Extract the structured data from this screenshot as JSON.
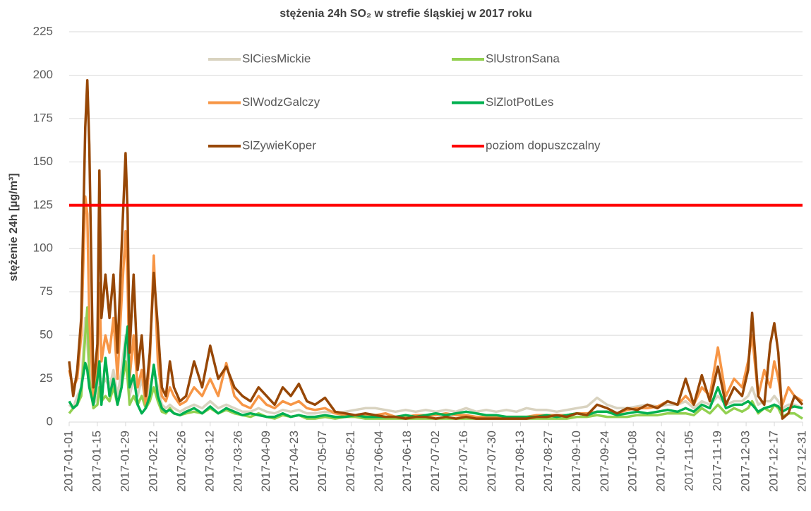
{
  "chart_data": {
    "type": "line",
    "title": "stężenia 24h SO₂ w strefie śląskiej w 2017 roku",
    "y_label": "stężenie 24h [µg/m³]",
    "x": [
      "2017-01-01",
      "2017-01-03",
      "2017-01-05",
      "2017-01-07",
      "2017-01-09",
      "2017-01-10",
      "2017-01-11",
      "2017-01-13",
      "2017-01-15",
      "2017-01-16",
      "2017-01-17",
      "2017-01-19",
      "2017-01-21",
      "2017-01-23",
      "2017-01-25",
      "2017-01-27",
      "2017-01-29",
      "2017-01-30",
      "2017-01-31",
      "2017-02-02",
      "2017-02-04",
      "2017-02-06",
      "2017-02-08",
      "2017-02-10",
      "2017-02-12",
      "2017-02-14",
      "2017-02-16",
      "2017-02-18",
      "2017-02-20",
      "2017-02-22",
      "2017-02-25",
      "2017-02-28",
      "2017-03-04",
      "2017-03-08",
      "2017-03-12",
      "2017-03-16",
      "2017-03-20",
      "2017-03-24",
      "2017-03-28",
      "2017-04-01",
      "2017-04-05",
      "2017-04-09",
      "2017-04-13",
      "2017-04-17",
      "2017-04-21",
      "2017-04-25",
      "2017-04-29",
      "2017-05-03",
      "2017-05-08",
      "2017-05-13",
      "2017-05-18",
      "2017-05-23",
      "2017-05-28",
      "2017-06-02",
      "2017-06-07",
      "2017-06-12",
      "2017-06-17",
      "2017-06-22",
      "2017-06-27",
      "2017-07-02",
      "2017-07-07",
      "2017-07-12",
      "2017-07-17",
      "2017-07-22",
      "2017-07-27",
      "2017-08-01",
      "2017-08-06",
      "2017-08-11",
      "2017-08-16",
      "2017-08-21",
      "2017-08-26",
      "2017-08-31",
      "2017-09-05",
      "2017-09-10",
      "2017-09-15",
      "2017-09-20",
      "2017-09-25",
      "2017-09-30",
      "2017-10-05",
      "2017-10-10",
      "2017-10-15",
      "2017-10-20",
      "2017-10-25",
      "2017-10-30",
      "2017-11-03",
      "2017-11-07",
      "2017-11-11",
      "2017-11-15",
      "2017-11-19",
      "2017-11-23",
      "2017-11-27",
      "2017-12-01",
      "2017-12-04",
      "2017-12-06",
      "2017-12-09",
      "2017-12-12",
      "2017-12-15",
      "2017-12-17",
      "2017-12-19",
      "2017-12-21",
      "2017-12-24",
      "2017-12-27",
      "2017-12-31"
    ],
    "series": [
      {
        "name": "SlCiesMickie",
        "color": "#d9d3c0",
        "values": [
          10,
          8,
          15,
          20,
          60,
          45,
          30,
          10,
          15,
          30,
          20,
          25,
          20,
          30,
          15,
          30,
          50,
          35,
          15,
          25,
          15,
          25,
          10,
          20,
          30,
          20,
          10,
          8,
          10,
          8,
          6,
          8,
          10,
          8,
          12,
          8,
          10,
          8,
          6,
          6,
          8,
          6,
          5,
          7,
          6,
          7,
          5,
          5,
          6,
          5,
          6,
          7,
          8,
          8,
          7,
          6,
          7,
          6,
          7,
          6,
          7,
          6,
          8,
          6,
          7,
          6,
          7,
          6,
          8,
          7,
          7,
          6,
          7,
          8,
          9,
          14,
          10,
          8,
          8,
          9,
          10,
          9,
          10,
          10,
          12,
          8,
          12,
          10,
          15,
          10,
          12,
          12,
          15,
          20,
          10,
          12,
          12,
          15,
          12,
          8,
          10,
          10,
          8
        ]
      },
      {
        "name": "SlUstronSana",
        "color": "#92d050",
        "values": [
          5,
          8,
          10,
          15,
          50,
          66,
          25,
          8,
          10,
          20,
          12,
          15,
          12,
          20,
          10,
          20,
          35,
          25,
          10,
          15,
          10,
          15,
          8,
          12,
          20,
          12,
          6,
          5,
          8,
          5,
          4,
          5,
          6,
          5,
          8,
          5,
          7,
          5,
          4,
          3,
          5,
          3,
          2,
          4,
          3,
          4,
          2,
          2,
          3,
          2,
          3,
          3,
          2,
          2,
          2,
          2,
          2,
          2,
          2,
          2,
          2,
          2,
          2,
          2,
          2,
          2,
          2,
          2,
          2,
          2,
          2,
          2,
          2,
          3,
          3,
          4,
          3,
          3,
          3,
          4,
          4,
          4,
          5,
          5,
          5,
          4,
          8,
          5,
          10,
          5,
          8,
          6,
          8,
          12,
          5,
          8,
          6,
          10,
          8,
          3,
          5,
          5,
          2
        ]
      },
      {
        "name": "SlWodzGalczy",
        "color": "#f79646",
        "values": [
          30,
          20,
          25,
          50,
          130,
          120,
          60,
          15,
          30,
          80,
          35,
          50,
          40,
          60,
          25,
          70,
          110,
          80,
          25,
          50,
          20,
          30,
          10,
          35,
          96,
          35,
          15,
          12,
          20,
          15,
          10,
          12,
          20,
          15,
          25,
          15,
          34,
          15,
          10,
          8,
          15,
          10,
          8,
          12,
          10,
          12,
          8,
          7,
          8,
          5,
          4,
          4,
          4,
          4,
          5,
          3,
          3,
          4,
          4,
          4,
          5,
          4,
          4,
          3,
          3,
          3,
          3,
          3,
          3,
          4,
          4,
          4,
          4,
          5,
          5,
          6,
          6,
          5,
          7,
          8,
          8,
          9,
          12,
          10,
          15,
          10,
          20,
          15,
          43,
          15,
          25,
          20,
          35,
          50,
          15,
          30,
          20,
          35,
          25,
          10,
          20,
          15,
          12
        ]
      },
      {
        "name": "SlZlotPotLes",
        "color": "#00b050",
        "values": [
          12,
          8,
          10,
          20,
          34,
          30,
          20,
          10,
          25,
          35,
          10,
          37,
          15,
          25,
          10,
          20,
          45,
          55,
          20,
          27,
          10,
          5,
          8,
          15,
          33,
          15,
          8,
          6,
          7,
          5,
          4,
          6,
          8,
          5,
          9,
          5,
          8,
          6,
          4,
          5,
          4,
          3,
          3,
          5,
          3,
          4,
          3,
          3,
          4,
          3,
          3,
          4,
          3,
          3,
          3,
          3,
          4,
          3,
          4,
          5,
          4,
          5,
          6,
          5,
          4,
          4,
          3,
          3,
          3,
          3,
          4,
          3,
          4,
          5,
          4,
          6,
          6,
          4,
          5,
          6,
          5,
          6,
          7,
          6,
          8,
          6,
          10,
          8,
          20,
          8,
          10,
          10,
          12,
          10,
          6,
          8,
          9,
          10,
          9,
          6,
          8,
          9,
          8
        ]
      },
      {
        "name": "SlZywieKoper",
        "color": "#974706",
        "values": [
          35,
          15,
          30,
          60,
          170,
          197,
          160,
          20,
          45,
          145,
          60,
          85,
          60,
          85,
          40,
          100,
          155,
          120,
          40,
          85,
          30,
          50,
          15,
          40,
          86,
          55,
          20,
          15,
          35,
          20,
          12,
          15,
          35,
          20,
          44,
          25,
          32,
          20,
          15,
          12,
          20,
          15,
          10,
          20,
          15,
          22,
          12,
          10,
          14,
          6,
          5,
          4,
          5,
          4,
          3,
          3,
          2,
          3,
          3,
          2,
          3,
          2,
          3,
          2,
          2,
          2,
          2,
          2,
          2,
          3,
          3,
          4,
          3,
          5,
          4,
          10,
          8,
          5,
          8,
          7,
          10,
          8,
          12,
          10,
          25,
          10,
          27,
          12,
          32,
          10,
          20,
          15,
          30,
          63,
          15,
          10,
          45,
          57,
          40,
          2,
          5,
          15,
          10
        ]
      }
    ],
    "threshold": {
      "name": "poziom dopuszczalny",
      "color": "#ff0000",
      "value": 125
    },
    "xlim": [
      "2017-01-01",
      "2017-12-31"
    ],
    "xticks": [
      "2017-01-01",
      "2017-01-15",
      "2017-01-29",
      "2017-02-12",
      "2017-02-26",
      "2017-03-12",
      "2017-03-26",
      "2017-04-09",
      "2017-04-23",
      "2017-05-07",
      "2017-05-21",
      "2017-06-04",
      "2017-06-18",
      "2017-07-02",
      "2017-07-16",
      "2017-07-30",
      "2017-08-13",
      "2017-08-27",
      "2017-09-10",
      "2017-09-24",
      "2017-10-08",
      "2017-10-22",
      "2017-11-05",
      "2017-11-19",
      "2017-12-03",
      "2017-12-17",
      "2017-12-31"
    ],
    "ylim": [
      0,
      225
    ],
    "yticks": [
      0,
      25,
      50,
      75,
      100,
      125,
      150,
      175,
      200,
      225
    ],
    "grid": true
  }
}
